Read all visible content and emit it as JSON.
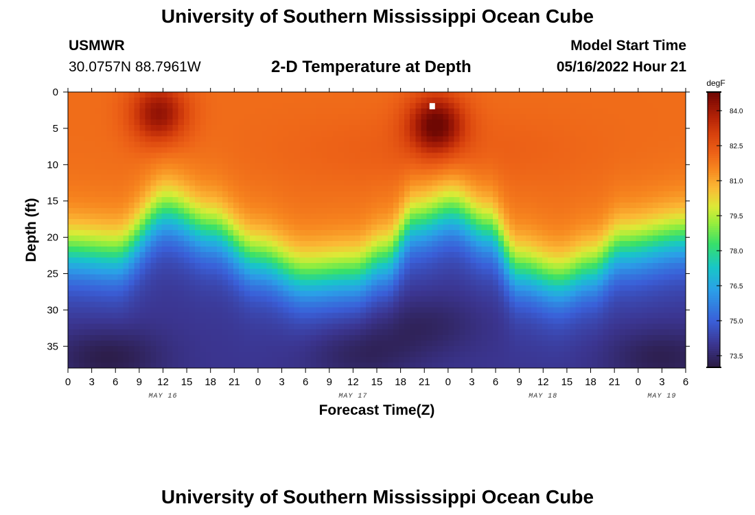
{
  "page": {
    "title": "University of Southern Mississippi Ocean Cube",
    "footer_title": "University of Southern Mississippi Ocean Cube"
  },
  "station": {
    "name": "USMWR",
    "coords": "30.0757N  88.7961W"
  },
  "model": {
    "label": "Model Start Time",
    "start": "05/16/2022 Hour 21"
  },
  "chart_data": {
    "type": "heatmap",
    "title": "2-D Temperature at Depth",
    "xlabel": "Forecast Time(Z)",
    "ylabel": "Depth (ft)",
    "x_range_hours": [
      0,
      78
    ],
    "y_range_ft": [
      0,
      38
    ],
    "x_ticks": [
      {
        "hour": 0,
        "label": "0"
      },
      {
        "hour": 3,
        "label": "3"
      },
      {
        "hour": 6,
        "label": "6"
      },
      {
        "hour": 9,
        "label": "9"
      },
      {
        "hour": 12,
        "label": "12"
      },
      {
        "hour": 15,
        "label": "15"
      },
      {
        "hour": 18,
        "label": "18"
      },
      {
        "hour": 21,
        "label": "21"
      },
      {
        "hour": 24,
        "label": "0"
      },
      {
        "hour": 27,
        "label": "3"
      },
      {
        "hour": 30,
        "label": "6"
      },
      {
        "hour": 33,
        "label": "9"
      },
      {
        "hour": 36,
        "label": "12"
      },
      {
        "hour": 39,
        "label": "15"
      },
      {
        "hour": 42,
        "label": "18"
      },
      {
        "hour": 45,
        "label": "21"
      },
      {
        "hour": 48,
        "label": "0"
      },
      {
        "hour": 51,
        "label": "3"
      },
      {
        "hour": 54,
        "label": "6"
      },
      {
        "hour": 57,
        "label": "9"
      },
      {
        "hour": 60,
        "label": "12"
      },
      {
        "hour": 63,
        "label": "15"
      },
      {
        "hour": 66,
        "label": "18"
      },
      {
        "hour": 69,
        "label": "21"
      },
      {
        "hour": 72,
        "label": "0"
      },
      {
        "hour": 75,
        "label": "3"
      },
      {
        "hour": 78,
        "label": "6"
      }
    ],
    "date_labels": [
      {
        "hour": 12,
        "label": "MAY 16"
      },
      {
        "hour": 36,
        "label": "MAY 17"
      },
      {
        "hour": 60,
        "label": "MAY 18"
      },
      {
        "hour": 75,
        "label": "MAY 19"
      }
    ],
    "y_ticks": [
      0,
      5,
      10,
      15,
      20,
      25,
      30,
      35
    ],
    "colorbar": {
      "unit": "degF",
      "range": [
        73.0,
        84.8
      ],
      "ticks": [
        "84.0",
        "82.5",
        "81.0",
        "79.5",
        "78.0",
        "76.5",
        "75.0",
        "73.5"
      ]
    },
    "colormap_stops": [
      {
        "value": 73.0,
        "color": "#2a1a40"
      },
      {
        "value": 74.0,
        "color": "#3b3590"
      },
      {
        "value": 75.0,
        "color": "#3a5fd8"
      },
      {
        "value": 76.3,
        "color": "#2b9ee8"
      },
      {
        "value": 77.3,
        "color": "#18c6c8"
      },
      {
        "value": 78.3,
        "color": "#37e06a"
      },
      {
        "value": 79.2,
        "color": "#98ee3c"
      },
      {
        "value": 79.9,
        "color": "#dcea37"
      },
      {
        "value": 80.7,
        "color": "#fbb935"
      },
      {
        "value": 81.5,
        "color": "#f7871f"
      },
      {
        "value": 82.2,
        "color": "#ed6217"
      },
      {
        "value": 83.0,
        "color": "#d8420d"
      },
      {
        "value": 83.7,
        "color": "#b52407"
      },
      {
        "value": 84.4,
        "color": "#8a0f04"
      },
      {
        "value": 84.8,
        "color": "#6e0803"
      }
    ],
    "thermocline_depth_ft": [
      {
        "hour": 0,
        "depth": 22.0
      },
      {
        "hour": 6,
        "depth": 22.5
      },
      {
        "hour": 12.5,
        "depth": 16.5
      },
      {
        "hour": 18,
        "depth": 19.0
      },
      {
        "hour": 24,
        "depth": 23.0
      },
      {
        "hour": 30,
        "depth": 25.5
      },
      {
        "hour": 36,
        "depth": 25.0
      },
      {
        "hour": 40,
        "depth": 23.0
      },
      {
        "hour": 44,
        "depth": 18.0
      },
      {
        "hour": 48.5,
        "depth": 16.5
      },
      {
        "hour": 53,
        "depth": 19.0
      },
      {
        "hour": 57,
        "depth": 24.5
      },
      {
        "hour": 62,
        "depth": 26.0
      },
      {
        "hour": 66,
        "depth": 24.5
      },
      {
        "hour": 70,
        "depth": 21.5
      },
      {
        "hour": 78,
        "depth": 20.0
      }
    ],
    "warm_maxima": [
      {
        "hour": 11.5,
        "depth": 3.0,
        "value": 84.3
      },
      {
        "hour": 46.5,
        "depth": 4.5,
        "value": 84.8
      }
    ],
    "cold_minima": [
      {
        "hour": 5,
        "depth": 36.5,
        "value": 73.1
      },
      {
        "hour": 37,
        "depth": 36.0,
        "value": 73.3
      },
      {
        "hour": 45,
        "depth": 32.0,
        "value": 73.4
      },
      {
        "hour": 75,
        "depth": 36.5,
        "value": 73.2
      }
    ],
    "surface_temp_degF": 82.0,
    "bottom_temp_degF": 74.0,
    "marker": {
      "hour": 46,
      "depth": 2.0
    }
  }
}
